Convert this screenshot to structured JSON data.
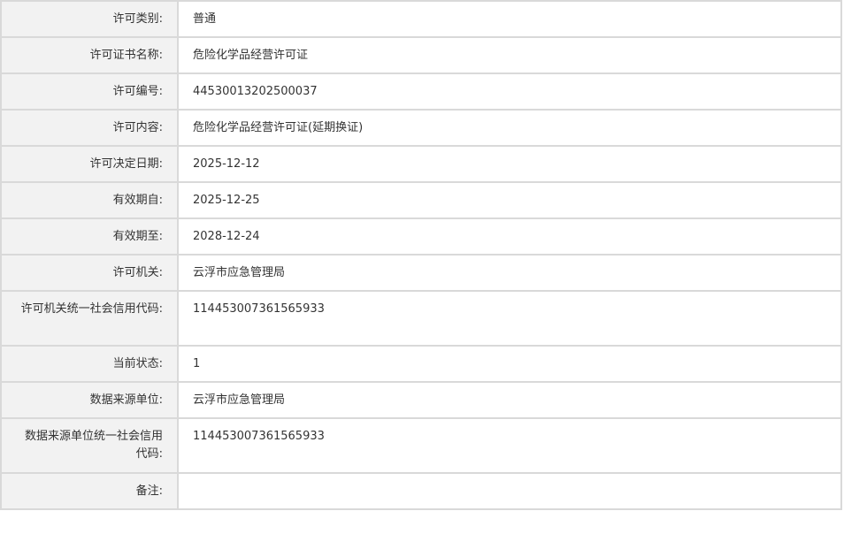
{
  "rows": [
    {
      "label": "许可类别:",
      "value": "普通"
    },
    {
      "label": "许可证书名称:",
      "value": "危险化学品经营许可证"
    },
    {
      "label": "许可编号:",
      "value": "44530013202500037"
    },
    {
      "label": "许可内容:",
      "value": "危险化学品经营许可证(延期换证)"
    },
    {
      "label": "许可决定日期:",
      "value": "2025-12-12"
    },
    {
      "label": "有效期自:",
      "value": "2025-12-25"
    },
    {
      "label": "有效期至:",
      "value": "2028-12-24"
    },
    {
      "label": "许可机关:",
      "value": "云浮市应急管理局"
    },
    {
      "label": "许可机关统一社会信用代码:",
      "value": "114453007361565933"
    },
    {
      "label": "当前状态:",
      "value": "1"
    },
    {
      "label": "数据来源单位:",
      "value": "云浮市应急管理局"
    },
    {
      "label": "数据来源单位统一社会信用代码:",
      "value": "114453007361565933"
    },
    {
      "label": "备注:",
      "value": ""
    }
  ]
}
